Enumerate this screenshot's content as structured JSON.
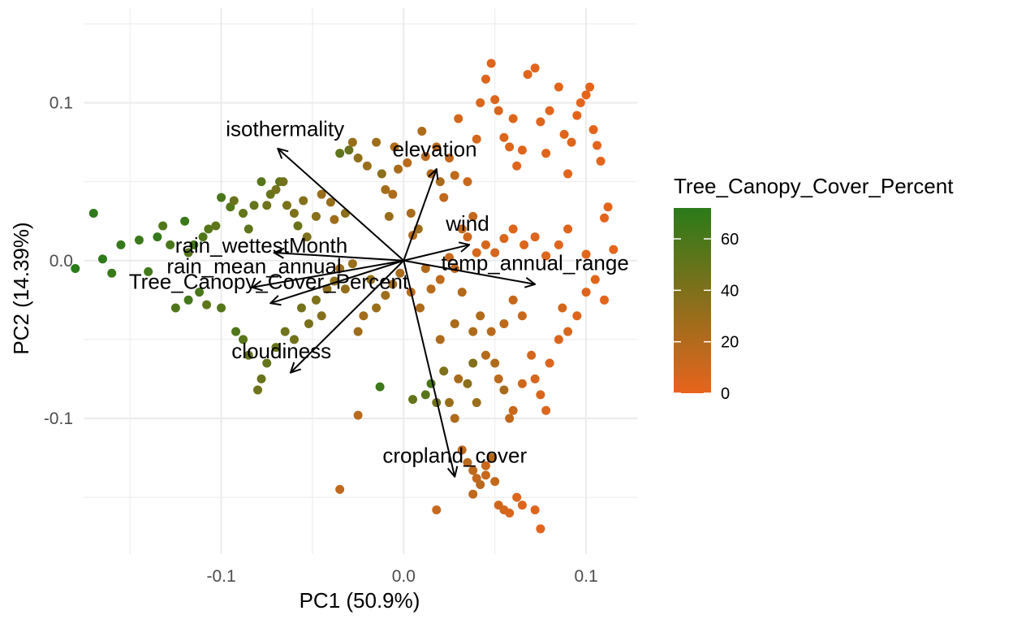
{
  "chart_data": {
    "type": "scatter",
    "subtype": "pca-biplot",
    "title": "",
    "xlabel": "PC1 (50.9%)",
    "ylabel": "PC2 (14.39%)",
    "xlim": [
      -0.175,
      0.128
    ],
    "ylim": [
      -0.186,
      0.16
    ],
    "x_ticks": [
      -0.1,
      0.0,
      0.1
    ],
    "x_tick_labels": [
      "-0.1",
      "0.0",
      "0.1"
    ],
    "y_ticks": [
      -0.1,
      0.0,
      0.1
    ],
    "y_tick_labels": [
      "-0.1",
      "0.0",
      "0.1"
    ],
    "grid": true,
    "color_scale": {
      "variable": "Tree_Canopy_Cover_Percent",
      "title": "Tree_Canopy_Cover_Percent",
      "low_color": "#E8641C",
      "high_color": "#2A7B1A",
      "range": [
        0,
        72
      ],
      "ticks": [
        0,
        20,
        40,
        60
      ],
      "tick_labels": [
        "0",
        "20",
        "40",
        "60"
      ],
      "legend_position": "right"
    },
    "arrow_color": "#000000",
    "vectors": [
      {
        "label": "isothermality",
        "x": -0.069,
        "y": 0.071,
        "label_x": -0.065,
        "label_y": 0.079
      },
      {
        "label": "elevation",
        "x": 0.018,
        "y": 0.058,
        "label_x": 0.017,
        "label_y": 0.066
      },
      {
        "label": "wind",
        "x": 0.036,
        "y": 0.01,
        "label_x": 0.035,
        "label_y": 0.019
      },
      {
        "label": "rain_wettestMonth",
        "x": -0.071,
        "y": 0.005,
        "label_x": -0.078,
        "label_y": 0.005
      },
      {
        "label": "rain_mean_annual",
        "x": -0.083,
        "y": -0.017,
        "label_x": -0.082,
        "label_y": -0.008
      },
      {
        "label": "temp_annual_range",
        "x": 0.072,
        "y": -0.015,
        "label_x": 0.072,
        "label_y": -0.006
      },
      {
        "label": "Tree_Canopy_Cover_Percent",
        "x": -0.073,
        "y": -0.027,
        "label_x": -0.074,
        "label_y": -0.018
      },
      {
        "label": "cloudiness",
        "x": -0.062,
        "y": -0.071,
        "label_x": -0.067,
        "label_y": -0.062
      },
      {
        "label": "cropland_cover",
        "x": 0.028,
        "y": -0.137,
        "label_x": 0.028,
        "label_y": -0.128
      }
    ],
    "points": [
      [
        -0.18,
        -0.005,
        72
      ],
      [
        -0.17,
        0.03,
        70
      ],
      [
        -0.165,
        0.001,
        70
      ],
      [
        -0.16,
        -0.008,
        66
      ],
      [
        -0.155,
        0.01,
        68
      ],
      [
        -0.145,
        0.013,
        65
      ],
      [
        -0.14,
        -0.007,
        62
      ],
      [
        -0.135,
        0.015,
        68
      ],
      [
        -0.132,
        0.022,
        58
      ],
      [
        -0.128,
        0.01,
        60
      ],
      [
        -0.12,
        0.025,
        66
      ],
      [
        -0.118,
        0.005,
        55
      ],
      [
        -0.115,
        0.01,
        62
      ],
      [
        -0.11,
        0.015,
        58
      ],
      [
        -0.107,
        0.02,
        55
      ],
      [
        -0.103,
        0.022,
        52
      ],
      [
        -0.1,
        0.04,
        60
      ],
      [
        -0.095,
        0.034,
        56
      ],
      [
        -0.093,
        0.038,
        48
      ],
      [
        -0.088,
        0.03,
        50
      ],
      [
        -0.085,
        0.02,
        52
      ],
      [
        -0.082,
        0.035,
        50
      ],
      [
        -0.078,
        0.05,
        55
      ],
      [
        -0.075,
        0.035,
        46
      ],
      [
        -0.073,
        0.042,
        48
      ],
      [
        -0.07,
        0.045,
        44
      ],
      [
        -0.068,
        0.05,
        52
      ],
      [
        -0.066,
        0.05,
        45
      ],
      [
        -0.064,
        0.035,
        42
      ],
      [
        -0.06,
        0.03,
        40
      ],
      [
        -0.058,
        0.022,
        48
      ],
      [
        -0.055,
        0.038,
        38
      ],
      [
        -0.053,
        0.015,
        40
      ],
      [
        -0.048,
        0.028,
        36
      ],
      [
        -0.045,
        0.042,
        30
      ],
      [
        -0.04,
        0.037,
        32
      ],
      [
        -0.038,
        0.026,
        28
      ],
      [
        -0.035,
        0.068,
        52
      ],
      [
        -0.032,
        0.03,
        35
      ],
      [
        -0.03,
        0.07,
        48
      ],
      [
        -0.028,
        0.075,
        30
      ],
      [
        -0.025,
        0.065,
        34
      ],
      [
        -0.02,
        0.06,
        30
      ],
      [
        -0.015,
        0.075,
        28
      ],
      [
        -0.012,
        0.055,
        35
      ],
      [
        -0.01,
        0.045,
        26
      ],
      [
        -0.008,
        0.028,
        30
      ],
      [
        -0.006,
        0.042,
        22
      ],
      [
        -0.005,
        0.072,
        20
      ],
      [
        -0.003,
        0.058,
        24
      ],
      [
        0.002,
        0.062,
        18
      ],
      [
        0.004,
        0.03,
        25
      ],
      [
        0.005,
        0.016,
        20
      ],
      [
        0.008,
        0.02,
        28
      ],
      [
        0.01,
        0.082,
        22
      ],
      [
        0.012,
        0.066,
        16
      ],
      [
        0.015,
        0.055,
        20
      ],
      [
        0.018,
        0.072,
        18
      ],
      [
        0.02,
        0.05,
        24
      ],
      [
        0.022,
        0.04,
        15
      ],
      [
        0.025,
        0.065,
        14
      ],
      [
        0.028,
        0.054,
        16
      ],
      [
        0.03,
        0.09,
        8
      ],
      [
        0.032,
        0.02,
        16
      ],
      [
        0.035,
        0.05,
        12
      ],
      [
        0.038,
        0.028,
        14
      ],
      [
        0.04,
        0.077,
        8
      ],
      [
        0.042,
        0.1,
        5
      ],
      [
        0.045,
        0.115,
        4
      ],
      [
        0.048,
        0.125,
        4
      ],
      [
        0.05,
        0.102,
        5
      ],
      [
        0.052,
        0.095,
        6
      ],
      [
        0.055,
        0.078,
        4
      ],
      [
        0.058,
        0.072,
        5
      ],
      [
        0.06,
        0.09,
        4
      ],
      [
        0.062,
        0.06,
        4
      ],
      [
        0.065,
        0.07,
        3
      ],
      [
        0.068,
        0.118,
        3
      ],
      [
        0.072,
        0.122,
        2
      ],
      [
        0.075,
        0.088,
        3
      ],
      [
        0.078,
        0.068,
        3
      ],
      [
        0.08,
        0.095,
        2
      ],
      [
        0.085,
        0.11,
        2
      ],
      [
        0.088,
        0.08,
        3
      ],
      [
        0.09,
        0.055,
        2
      ],
      [
        0.092,
        0.075,
        3
      ],
      [
        0.095,
        0.092,
        2
      ],
      [
        0.097,
        0.1,
        2
      ],
      [
        0.1,
        0.105,
        1
      ],
      [
        0.102,
        0.11,
        1
      ],
      [
        0.104,
        0.083,
        1
      ],
      [
        0.106,
        0.073,
        2
      ],
      [
        0.108,
        0.063,
        1
      ],
      [
        0.112,
        0.034,
        1
      ],
      [
        0.115,
        0.007,
        1
      ],
      [
        0.11,
        0.027,
        2
      ],
      [
        0.1,
        0.004,
        2
      ],
      [
        0.09,
        0.02,
        3
      ],
      [
        0.085,
        0.01,
        3
      ],
      [
        0.078,
        0.003,
        4
      ],
      [
        0.072,
        0.015,
        4
      ],
      [
        0.066,
        0.01,
        5
      ],
      [
        0.06,
        0.02,
        4
      ],
      [
        0.055,
        0.014,
        6
      ],
      [
        0.05,
        0.005,
        7
      ],
      [
        0.045,
        0.01,
        7
      ],
      [
        0.04,
        0.005,
        8
      ],
      [
        0.035,
        0.015,
        10
      ],
      [
        0.028,
        -0.005,
        14
      ],
      [
        0.025,
        0.002,
        12
      ],
      [
        0.02,
        -0.012,
        16
      ],
      [
        0.015,
        -0.018,
        18
      ],
      [
        0.012,
        -0.005,
        20
      ],
      [
        0.009,
        -0.03,
        22
      ],
      [
        0.004,
        -0.02,
        18
      ],
      [
        -0.002,
        -0.008,
        24
      ],
      [
        -0.006,
        -0.015,
        26
      ],
      [
        -0.01,
        -0.022,
        28
      ],
      [
        -0.015,
        -0.03,
        30
      ],
      [
        -0.018,
        -0.012,
        34
      ],
      [
        -0.022,
        -0.035,
        26
      ],
      [
        -0.025,
        -0.045,
        28
      ],
      [
        -0.028,
        -0.002,
        30
      ],
      [
        -0.032,
        -0.018,
        32
      ],
      [
        -0.035,
        -0.005,
        28
      ],
      [
        -0.038,
        -0.013,
        34
      ],
      [
        -0.042,
        -0.018,
        35
      ],
      [
        -0.045,
        -0.035,
        38
      ],
      [
        -0.048,
        -0.025,
        40
      ],
      [
        -0.052,
        -0.04,
        42
      ],
      [
        -0.056,
        -0.03,
        44
      ],
      [
        -0.06,
        -0.05,
        45
      ],
      [
        -0.065,
        -0.045,
        46
      ],
      [
        -0.07,
        -0.055,
        48
      ],
      [
        -0.075,
        -0.065,
        50
      ],
      [
        -0.078,
        -0.075,
        48
      ],
      [
        -0.08,
        -0.082,
        46
      ],
      [
        -0.085,
        -0.06,
        50
      ],
      [
        -0.088,
        -0.05,
        55
      ],
      [
        -0.092,
        -0.045,
        58
      ],
      [
        -0.1,
        -0.03,
        56
      ],
      [
        -0.108,
        -0.028,
        52
      ],
      [
        -0.112,
        -0.02,
        60
      ],
      [
        -0.118,
        -0.025,
        62
      ],
      [
        -0.125,
        -0.03,
        58
      ],
      [
        -0.013,
        -0.08,
        65
      ],
      [
        0.005,
        -0.088,
        50
      ],
      [
        0.012,
        -0.085,
        55
      ],
      [
        0.015,
        -0.078,
        60
      ],
      [
        0.018,
        -0.09,
        45
      ],
      [
        0.022,
        -0.07,
        40
      ],
      [
        0.025,
        -0.09,
        30
      ],
      [
        0.028,
        -0.1,
        22
      ],
      [
        0.03,
        -0.075,
        25
      ],
      [
        0.035,
        -0.078,
        35
      ],
      [
        0.038,
        -0.065,
        38
      ],
      [
        0.04,
        -0.09,
        30
      ],
      [
        0.045,
        -0.06,
        20
      ],
      [
        0.05,
        -0.065,
        22
      ],
      [
        0.052,
        -0.075,
        18
      ],
      [
        0.055,
        -0.082,
        25
      ],
      [
        0.058,
        -0.1,
        15
      ],
      [
        0.06,
        -0.095,
        12
      ],
      [
        0.065,
        -0.078,
        10
      ],
      [
        0.07,
        -0.06,
        8
      ],
      [
        0.072,
        -0.075,
        6
      ],
      [
        0.075,
        -0.085,
        6
      ],
      [
        0.078,
        -0.095,
        5
      ],
      [
        0.08,
        -0.065,
        4
      ],
      [
        0.085,
        -0.05,
        4
      ],
      [
        0.087,
        -0.03,
        8
      ],
      [
        0.09,
        -0.045,
        6
      ],
      [
        0.095,
        -0.035,
        5
      ],
      [
        0.1,
        -0.02,
        4
      ],
      [
        0.105,
        -0.012,
        3
      ],
      [
        0.11,
        -0.025,
        2
      ],
      [
        0.065,
        -0.035,
        12
      ],
      [
        0.06,
        -0.025,
        14
      ],
      [
        0.055,
        -0.04,
        16
      ],
      [
        0.048,
        -0.045,
        18
      ],
      [
        0.042,
        -0.035,
        20
      ],
      [
        0.038,
        -0.045,
        22
      ],
      [
        0.032,
        -0.02,
        20
      ],
      [
        0.028,
        -0.04,
        24
      ],
      [
        0.02,
        -0.05,
        22
      ],
      [
        -0.025,
        -0.098,
        18
      ],
      [
        -0.035,
        -0.145,
        15
      ],
      [
        0.018,
        -0.158,
        12
      ],
      [
        0.032,
        -0.12,
        15
      ],
      [
        0.035,
        -0.128,
        18
      ],
      [
        0.038,
        -0.133,
        16
      ],
      [
        0.04,
        -0.138,
        14
      ],
      [
        0.042,
        -0.142,
        18
      ],
      [
        0.045,
        -0.13,
        12
      ],
      [
        0.048,
        -0.125,
        20
      ],
      [
        0.05,
        -0.14,
        14
      ],
      [
        0.052,
        -0.155,
        10
      ],
      [
        0.055,
        -0.158,
        8
      ],
      [
        0.058,
        -0.16,
        6
      ],
      [
        0.062,
        -0.15,
        5
      ],
      [
        0.065,
        -0.155,
        4
      ],
      [
        0.072,
        -0.158,
        3
      ],
      [
        0.075,
        -0.17,
        2
      ],
      [
        0.038,
        -0.148,
        16
      ],
      [
        0.045,
        -0.136,
        12
      ]
    ]
  }
}
